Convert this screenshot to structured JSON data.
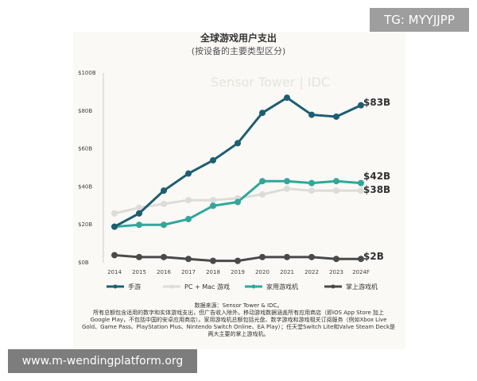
{
  "watermark_top": "TG: MYYJJPP",
  "watermark_bottom": "www.m-wendingplatform.org",
  "logo_text": "Sensor Tower | IDC",
  "chart_data": {
    "type": "line",
    "title": "全球游戏用户支出",
    "subtitle": "(按设备的主要类型区分)",
    "x": [
      "2014",
      "2015",
      "2016",
      "2017",
      "2018",
      "2019",
      "2020",
      "2021",
      "2022",
      "2023",
      "2024F"
    ],
    "ylim": [
      0,
      100
    ],
    "yticks": [
      "$0B",
      "$20B",
      "$40B",
      "$60B",
      "$80B",
      "$100B"
    ],
    "ytick_values": [
      0,
      20,
      40,
      60,
      80,
      100
    ],
    "series": [
      {
        "name": "手游",
        "color": "#1c5f73",
        "values": [
          19,
          26,
          38,
          47,
          54,
          63,
          79,
          87,
          78,
          77,
          83
        ],
        "end_label": "$83B"
      },
      {
        "name": "PC + Mac 游戏",
        "color": "#dcdcda",
        "values": [
          26,
          29,
          31,
          33,
          33,
          34,
          36,
          39,
          38,
          38,
          38
        ],
        "end_label": "$38B"
      },
      {
        "name": "家用游戏机",
        "color": "#2fa89a",
        "values": [
          19,
          20,
          20,
          23,
          30,
          32,
          43,
          43,
          42,
          43,
          42
        ],
        "end_label": "$42B"
      },
      {
        "name": "掌上游戏机",
        "color": "#4a4a4a",
        "values": [
          4,
          3,
          3,
          2,
          1,
          1,
          3,
          3,
          3,
          2,
          2
        ],
        "end_label": "$2B"
      }
    ],
    "source": "数据来源：Sensor Tower & IDC。",
    "notes": [
      "所有总额包含适用的数字和实体游戏支出，但广告收入除外。移动游戏数据涵盖所有应用商店（即iOS App Store 加上",
      "Google Play，不包括中国的安卓应用商店）。家用游戏机总额包括光盘、数字游戏和游戏相关订阅服务（例如Xbox Live",
      "Gold、Game Pass、PlayStation Plus、Nintendo Switch Online、EA Play）；任天堂Switch Lite和Valve Steam Deck是",
      "两大主要的掌上游戏机。"
    ]
  }
}
